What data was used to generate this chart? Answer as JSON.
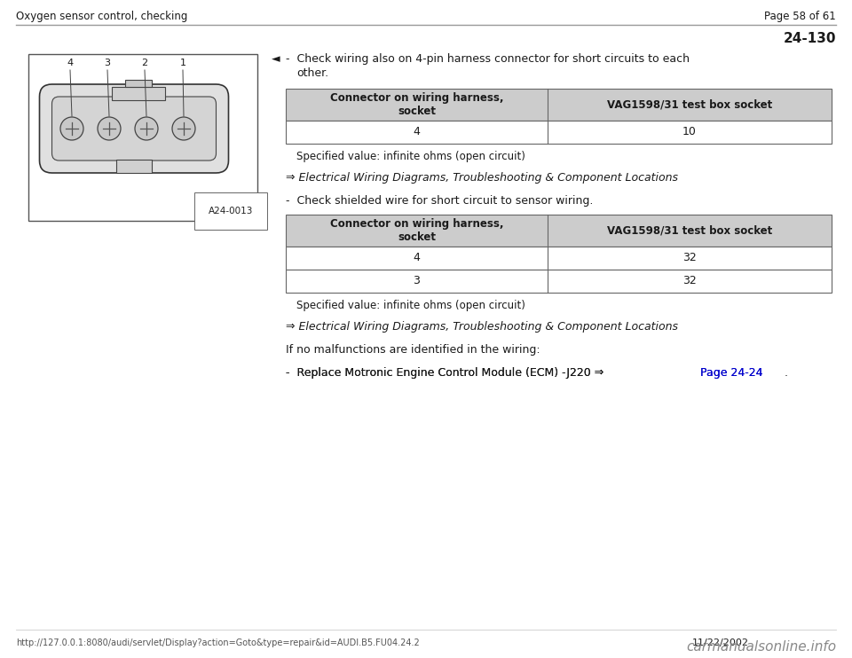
{
  "header_left": "Oxygen sensor control, checking",
  "header_right": "Page 58 of 61",
  "section_number": "24-130",
  "background_color": "#ffffff",
  "header_line_color": "#999999",
  "bullet1_text": "-  Check wiring also on 4-pin harness connector for short circuits to each\n    other.",
  "table1_header_col1": "Connector on wiring harness,\nsocket",
  "table1_header_col2": "VAG1598/31 test box socket",
  "table1_row1_col1": "4",
  "table1_row1_col2": "10",
  "specified_value1": "   Specified value: infinite ohms (open circuit)",
  "arrow_link1": "⇒ Electrical Wiring Diagrams, Troubleshooting & Component Locations",
  "bullet2_text": "-  Check shielded wire for short circuit to sensor wiring.",
  "table2_header_col1": "Connector on wiring harness,\nsocket",
  "table2_header_col2": "VAG1598/31 test box socket",
  "table2_row1_col1": "4",
  "table2_row1_col2": "32",
  "table2_row2_col1": "3",
  "table2_row2_col2": "32",
  "specified_value2": "   Specified value: infinite ohms (open circuit)",
  "arrow_link2": "⇒ Electrical Wiring Diagrams, Troubleshooting & Component Locations",
  "if_no_text": "If no malfunctions are identified in the wiring:",
  "replace_prefix": "-  Replace Motronic Engine Control Module (ECM) -J220 ⇒ ",
  "replace_link": "Page 24-24",
  "replace_suffix": " .",
  "footer_url": "http://127.0.0.1:8080/audi/servlet/Display?action=Goto&type=repair&id=AUDI.B5.FU04.24.2",
  "footer_date": "11/22/2002",
  "footer_logo": "carmanualsonline.info",
  "table_header_bg": "#cccccc",
  "table_border_color": "#666666",
  "text_color": "#1a1a1a",
  "link_color": "#0000cc",
  "arrow_marker": "◄",
  "diagram_label": "A24-0013",
  "pin_numbers": [
    "4",
    "3",
    "2",
    "1"
  ]
}
